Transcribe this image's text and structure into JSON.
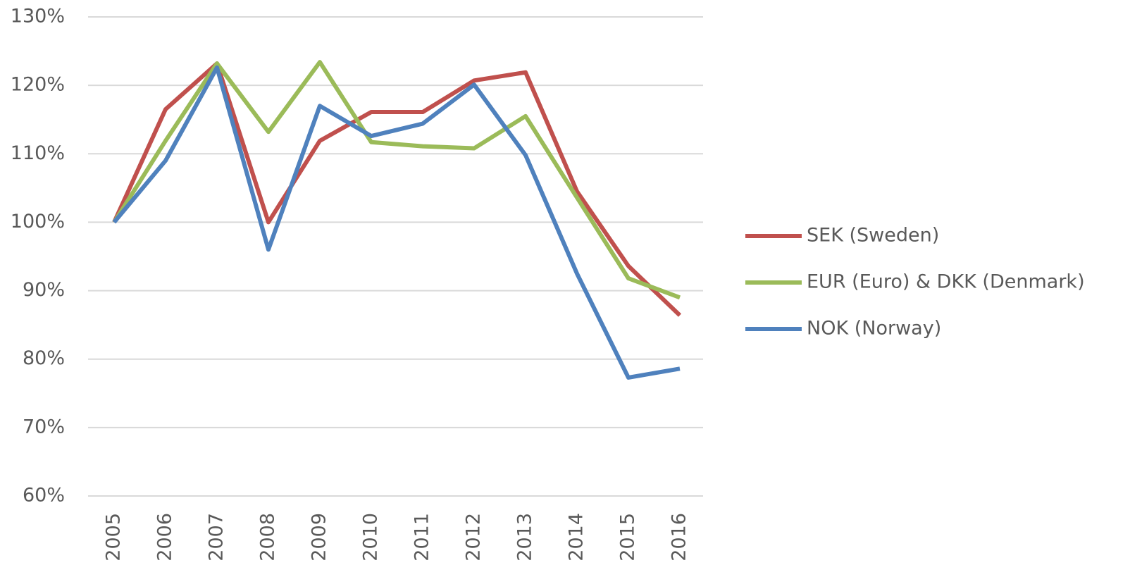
{
  "chart_data": {
    "type": "line",
    "categories": [
      "2005",
      "2006",
      "2007",
      "2008",
      "2009",
      "2010",
      "2011",
      "2012",
      "2013",
      "2014",
      "2015",
      "2016"
    ],
    "series": [
      {
        "name": "SEK (Sweden)",
        "color": "#c0504d",
        "values": [
          100,
          116.5,
          123.2,
          100,
          111.9,
          116.1,
          116.1,
          120.7,
          121.9,
          104.5,
          93.6,
          86.4
        ]
      },
      {
        "name": "EUR (Euro) & DKK (Denmark)",
        "color": "#9bbb59",
        "values": [
          100,
          111.9,
          123.2,
          113.2,
          123.4,
          111.7,
          111.1,
          110.8,
          115.5,
          103.6,
          91.8,
          89.0
        ]
      },
      {
        "name": "NOK (Norway)",
        "color": "#4f81bd",
        "values": [
          100,
          109,
          122.6,
          96,
          117,
          112.6,
          114.4,
          120.1,
          109.8,
          92.5,
          77.3,
          78.6
        ]
      }
    ],
    "ylim": [
      60,
      130
    ],
    "yticks": [
      {
        "value": 60,
        "label": "60%"
      },
      {
        "value": 70,
        "label": "70%"
      },
      {
        "value": 80,
        "label": "80%"
      },
      {
        "value": 90,
        "label": "90%"
      },
      {
        "value": 100,
        "label": "100%"
      },
      {
        "value": 110,
        "label": "110%"
      },
      {
        "value": 120,
        "label": "120%"
      },
      {
        "value": 130,
        "label": "130%"
      }
    ],
    "grid": true,
    "legend": "right"
  }
}
